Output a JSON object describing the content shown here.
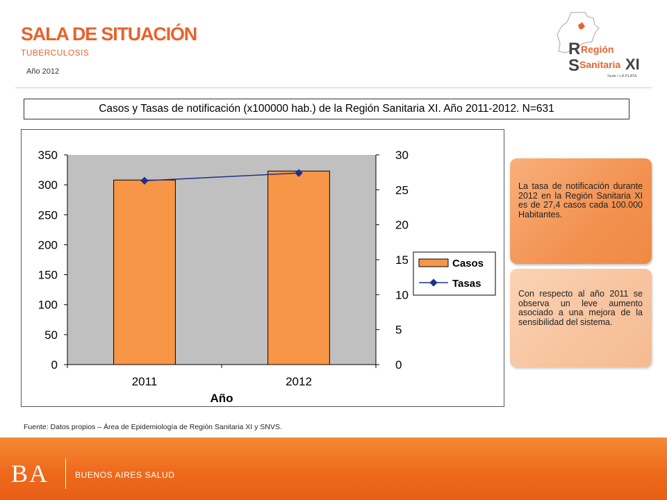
{
  "header": {
    "title": "SALA DE SITUACIÓN",
    "subtitle": "TUBERCULOSIS",
    "year": "Año 2012"
  },
  "logo": {
    "line1": "Región",
    "line2": "Sanitaria",
    "numeral": "XI",
    "small": "Sede • LA PLATA"
  },
  "caption": "Casos y Tasas de notificación (x100000 hab.) de la Región Sanitaria XI. Año 2011-2012. N=631",
  "chart_data": {
    "type": "bar",
    "categories": [
      "2011",
      "2012"
    ],
    "series": [
      {
        "name": "Casos",
        "type": "bar",
        "axis": "left",
        "values": [
          308,
          323
        ]
      },
      {
        "name": "Tasas",
        "type": "line",
        "axis": "right",
        "values": [
          26.3,
          27.4
        ]
      }
    ],
    "xlabel": "Año",
    "ylabel": "",
    "ylim": [
      0,
      350
    ],
    "y2lim": [
      0,
      30
    ],
    "yticks": [
      0,
      50,
      100,
      150,
      200,
      250,
      300,
      350
    ],
    "y2ticks": [
      0,
      5,
      10,
      15,
      20,
      25,
      30
    ],
    "legend_position": "right",
    "colors": {
      "bars": "#f79646",
      "line": "#1f2f8f",
      "plot_bg": "#c0c0c0"
    }
  },
  "callouts": [
    {
      "text": "La tasa de notificación durante 2012 en la Región Sanitaria XI es de 27,4 casos cada 100.000 Habitantes."
    },
    {
      "text": "Con respecto al año 2011 se observa un leve aumento asociado a una mejora de la sensibilidad del sistema."
    }
  ],
  "source": "Fuente: Datos propios – Área de Epidemiología de Región Sanitaria XI y SNVS.",
  "footer": {
    "brand": "BA",
    "label": "BUENOS AIRES SALUD"
  }
}
